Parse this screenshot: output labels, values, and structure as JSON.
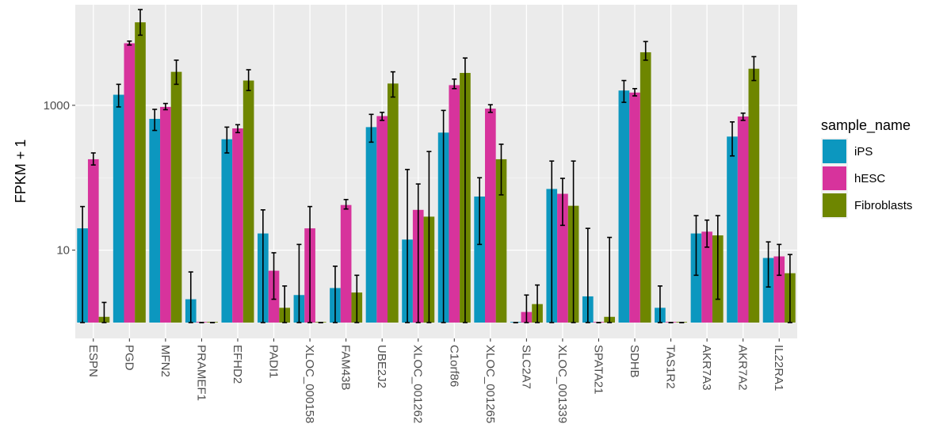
{
  "chart_data": {
    "type": "bar",
    "ylabel": "FPKM + 1",
    "xlabel": "",
    "yscale": "log10",
    "ylim": [
      1,
      20000
    ],
    "yticks": [
      10,
      1000
    ],
    "ytick_labels": [
      "10",
      "1000"
    ],
    "grid": true,
    "legend": {
      "title": "sample_name",
      "placement": "right"
    },
    "categories": [
      "ESPN",
      "PGD",
      "MFN2",
      "PRAMEF1",
      "EFHD2",
      "PADI1",
      "XLOC_000158",
      "FAM43B",
      "UBE2J2",
      "XLOC_001262",
      "C1orf86",
      "XLOC_001265",
      "SLC2A7",
      "XLOC_001339",
      "SPATA21",
      "SDHB",
      "TAS1R2",
      "AKR7A3",
      "AKR7A2",
      "IL22RA1"
    ],
    "series": [
      {
        "name": "iPS",
        "color": "#0c97bf",
        "values": [
          20,
          1400,
          650,
          2.1,
          340,
          17,
          2.4,
          3,
          500,
          14,
          420,
          55,
          1,
          70,
          2.3,
          1600,
          1.6,
          17,
          370,
          7.8
        ],
        "err_low": [
          1,
          950,
          450,
          1,
          220,
          1,
          1,
          1,
          310,
          1,
          1,
          12,
          1,
          1,
          1,
          1100,
          1,
          4.5,
          200,
          3.1
        ],
        "err_high": [
          40,
          1950,
          880,
          5,
          500,
          36,
          12,
          6,
          750,
          130,
          850,
          100,
          1,
          170,
          20,
          2200,
          3.2,
          30,
          590,
          13
        ]
      },
      {
        "name": "hESC",
        "color": "#d7339c",
        "values": [
          180,
          7200,
          950,
          1,
          480,
          5.2,
          20,
          42,
          710,
          36,
          1900,
          900,
          1.4,
          60,
          1,
          1500,
          1,
          18,
          700,
          8.2
        ],
        "err_low": [
          150,
          6800,
          870,
          1,
          420,
          2.1,
          1,
          37,
          620,
          1,
          1700,
          800,
          1,
          22,
          1,
          1350,
          1,
          11,
          620,
          4.5
        ],
        "err_high": [
          220,
          7700,
          1060,
          1,
          540,
          9.2,
          40,
          50,
          800,
          82,
          2300,
          1020,
          2.4,
          98,
          1,
          1700,
          1,
          26,
          780,
          12
        ]
      },
      {
        "name": "Fibroblasts",
        "color": "#6e8600",
        "values": [
          1.2,
          14000,
          2900,
          1,
          2200,
          1.6,
          1,
          2.6,
          2000,
          29,
          2800,
          180,
          1.8,
          41,
          1.2,
          5400,
          1,
          16,
          3200,
          4.8
        ],
        "err_low": [
          1,
          9300,
          1950,
          1,
          1600,
          1,
          1,
          1,
          1300,
          1,
          1,
          58,
          1,
          1,
          1,
          4200,
          1,
          2.1,
          2200,
          1
        ],
        "err_high": [
          1.9,
          21000,
          4200,
          1,
          3100,
          3.2,
          1,
          4.5,
          2900,
          230,
          4500,
          290,
          3.3,
          170,
          15,
          7600,
          1,
          30,
          4700,
          8.7
        ]
      }
    ]
  }
}
